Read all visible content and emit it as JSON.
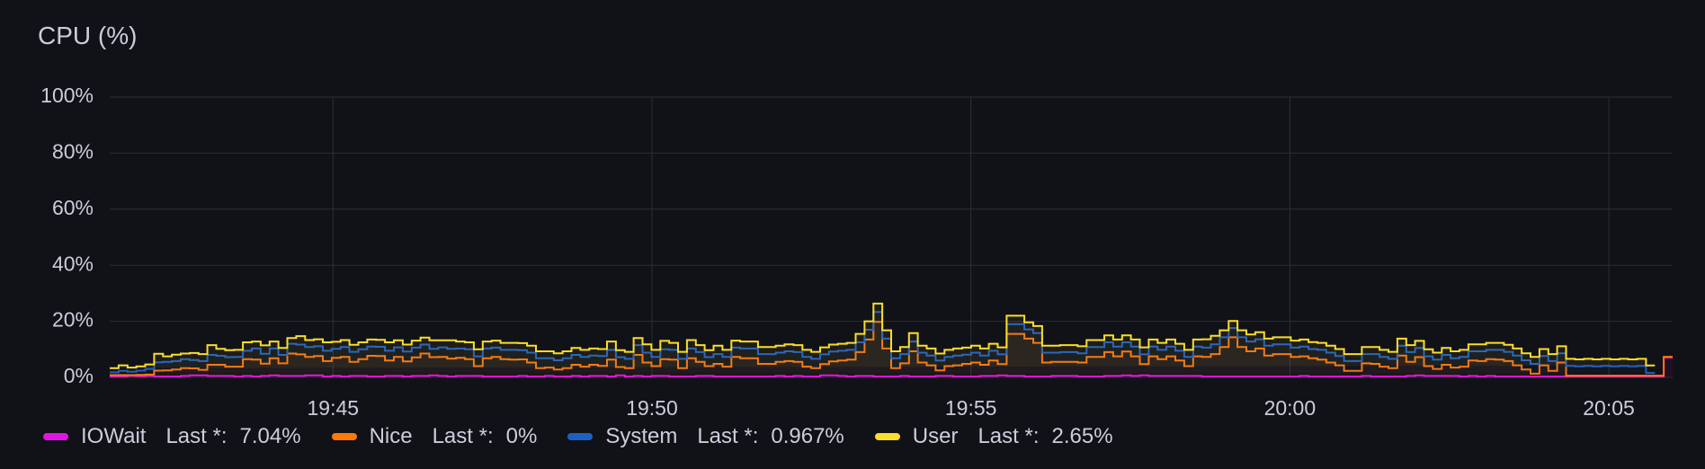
{
  "panel": {
    "title": "CPU (%)"
  },
  "legend": [
    {
      "name": "IOWait",
      "last_label": "Last *:",
      "last_value": "7.04%",
      "color": "#e314e3"
    },
    {
      "name": "Nice",
      "last_label": "Last *:",
      "last_value": "0%",
      "color": "#ff780a"
    },
    {
      "name": "System",
      "last_label": "Last *:",
      "last_value": "0.967%",
      "color": "#1f60c4"
    },
    {
      "name": "User",
      "last_label": "Last *:",
      "last_value": "2.65%",
      "color": "#fade2a"
    }
  ],
  "chart_data": {
    "type": "line",
    "title": "CPU (%)",
    "stacked": true,
    "step": true,
    "xlabel": "",
    "ylabel": "",
    "x_start": "19:41:30",
    "x_end": "20:06:00",
    "x_ticks": [
      "19:45",
      "19:50",
      "19:55",
      "20:00",
      "20:05"
    ],
    "y_ticks": [
      "0%",
      "20%",
      "40%",
      "60%",
      "80%",
      "100%"
    ],
    "ylim": [
      0,
      100
    ],
    "grid": true,
    "legend_position": "bottom-left",
    "series": [
      {
        "name": "IOWait",
        "color": "#e314e3",
        "values": [
          0.3,
          0.3,
          0.5,
          0.4,
          0.5,
          0.3,
          0.3,
          0.3,
          0.5,
          0.7,
          0.7,
          0.5,
          0.5,
          0.5,
          0.3,
          0.5,
          0.3,
          0.5,
          0.7,
          0.5,
          0.5,
          0.5,
          0.7,
          0.7,
          0.3,
          0.5,
          0.3,
          0.5,
          0.5,
          0.3,
          0.3,
          0.5,
          0.5,
          0.3,
          0.5,
          0.5,
          0.7,
          0.5,
          0.3,
          0.5,
          0.5,
          0.5,
          0.3,
          0.3,
          0.3,
          0.3,
          0.5,
          0.3,
          0.3,
          0.5,
          0.3,
          0.3,
          0.5,
          0.3,
          0.5,
          0.5,
          0.3,
          0.7,
          0.3,
          0.5,
          0.3,
          0.5,
          0.5,
          0.3,
          0.3,
          0.3,
          0.5,
          0.5,
          0.3,
          0.3,
          0.3,
          0.3,
          0.3,
          0.3,
          0.3,
          0.5,
          0.3,
          0.5,
          0.3,
          0.3,
          0.7,
          0.7,
          0.5,
          0.3,
          0.5,
          0.5,
          0.3,
          0.3,
          0.3,
          0.5,
          0.3,
          0.3,
          0.3,
          0.5,
          0.5,
          0.3,
          0.3,
          0.3,
          0.5,
          0.5,
          0.7,
          0.5,
          0.5,
          0.3,
          0.3,
          0.3,
          0.5,
          0.5,
          0.5,
          0.3,
          0.3,
          0.3,
          0.5,
          0.5,
          0.7,
          0.5,
          0.7,
          0.5,
          0.5,
          0.5,
          0.5,
          0.5,
          0.5,
          0.3,
          0.3,
          0.3,
          0.3,
          0.3,
          0.3,
          0.3,
          0.3,
          0.3,
          0.3,
          0.3,
          0.5,
          0.3,
          0.3,
          0.3,
          0.3,
          0.3,
          0.3,
          0.5,
          0.3,
          0.3,
          0.3,
          0.3,
          0.5,
          0.7,
          0.5,
          0.5,
          0.5,
          0.5,
          0.3,
          0.5,
          0.3,
          0.5,
          0.3,
          0.3,
          0.3,
          0.3,
          0.3,
          0.3,
          0.3,
          0.3,
          0.3,
          0.3,
          0.3,
          0.3,
          0.3,
          0.3,
          0.3,
          0.3,
          0.3,
          0.3,
          0.3,
          7.04
        ]
      },
      {
        "name": "Nice",
        "color": "#ff780a",
        "values": [
          0.5,
          0.5,
          0.3,
          0.5,
          0.5,
          2.1,
          2.2,
          2.5,
          2.8,
          2.5,
          2.0,
          4.0,
          4.0,
          3.3,
          3.5,
          6.0,
          6.0,
          4.4,
          6.1,
          4.5,
          8.0,
          7.7,
          6.6,
          6.9,
          5.5,
          6.5,
          7.0,
          5.0,
          6.0,
          7.4,
          7.3,
          5.5,
          6.8,
          5.4,
          6.6,
          8.0,
          6.5,
          6.8,
          6.4,
          6.5,
          6.0,
          3.5,
          6.5,
          7.0,
          6.2,
          6.0,
          5.9,
          5.0,
          3.0,
          3.0,
          2.5,
          3.0,
          4.0,
          3.5,
          4.0,
          3.6,
          6.0,
          3.0,
          3.0,
          7.5,
          5.0,
          3.5,
          6.0,
          6.0,
          3.0,
          6.5,
          5.0,
          3.5,
          4.5,
          3.5,
          7.0,
          6.5,
          6.5,
          4.5,
          4.5,
          5.0,
          5.5,
          5.0,
          3.5,
          3.0,
          4.0,
          5.0,
          5.5,
          6.0,
          8.5,
          13.0,
          19.5,
          10.0,
          3.0,
          4.5,
          9.0,
          5.0,
          4.0,
          2.0,
          3.5,
          4.0,
          4.5,
          5.0,
          4.0,
          5.5,
          4.0,
          15.0,
          15.0,
          13.5,
          12.0,
          5.0,
          5.0,
          5.0,
          5.0,
          5.0,
          7.0,
          7.0,
          8.5,
          7.0,
          8.5,
          7.0,
          4.0,
          7.0,
          6.0,
          7.0,
          5.5,
          3.5,
          7.0,
          7.0,
          8.0,
          10.5,
          14.0,
          10.5,
          9.0,
          10.0,
          7.5,
          8.0,
          8.0,
          7.0,
          7.0,
          6.5,
          6.0,
          5.0,
          4.0,
          2.0,
          2.0,
          4.5,
          4.5,
          3.5,
          3.0,
          7.5,
          5.0,
          6.5,
          3.5,
          2.5,
          4.0,
          3.0,
          3.5,
          5.5,
          5.5,
          6.0,
          6.0,
          5.5,
          4.0,
          2.5,
          1.0,
          4.0,
          2.0,
          5.0,
          0.3,
          0.3,
          0.3,
          0.3,
          0.3,
          0.3,
          0.3,
          0.3,
          0.3,
          0.3,
          0.3,
          0.3,
          0.3,
          0.3,
          0.3,
          0
        ]
      },
      {
        "name": "System",
        "color": "#1f60c4",
        "values": [
          1.0,
          1.5,
          1.2,
          1.5,
          2.0,
          3.0,
          3.0,
          3.0,
          3.2,
          3.0,
          3.1,
          3.5,
          3.2,
          3.4,
          3.5,
          3.0,
          4.0,
          3.5,
          3.5,
          3.0,
          3.5,
          3.5,
          3.5,
          3.5,
          3.7,
          3.2,
          3.5,
          3.6,
          3.5,
          3.3,
          3.3,
          3.5,
          3.4,
          3.5,
          3.5,
          3.2,
          3.0,
          3.4,
          3.5,
          3.3,
          3.5,
          3.5,
          3.5,
          3.3,
          3.3,
          3.5,
          3.3,
          3.5,
          3.5,
          3.3,
          3.3,
          3.5,
          3.5,
          3.5,
          3.3,
          3.5,
          3.5,
          3.5,
          3.3,
          3.5,
          3.5,
          3.3,
          3.5,
          3.5,
          3.3,
          3.5,
          3.5,
          3.2,
          3.5,
          3.5,
          3.3,
          3.5,
          3.5,
          3.5,
          3.5,
          3.3,
          3.5,
          3.5,
          3.5,
          3.3,
          3.5,
          3.5,
          3.5,
          3.5,
          3.5,
          3.5,
          3.5,
          3.5,
          3.5,
          3.3,
          3.5,
          3.5,
          3.5,
          3.5,
          3.3,
          3.5,
          3.3,
          3.5,
          3.3,
          3.5,
          3.5,
          3.5,
          3.5,
          3.3,
          3.5,
          3.5,
          3.3,
          3.5,
          3.5,
          3.3,
          3.5,
          3.5,
          3.5,
          3.5,
          3.3,
          3.5,
          3.5,
          3.5,
          3.3,
          3.5,
          3.5,
          3.3,
          3.5,
          3.3,
          3.5,
          3.5,
          3.3,
          3.5,
          3.5,
          3.3,
          3.5,
          3.5,
          3.5,
          3.3,
          3.5,
          3.3,
          3.5,
          3.5,
          3.3,
          3.5,
          3.5,
          3.3,
          3.5,
          3.5,
          3.3,
          3.5,
          3.5,
          3.3,
          3.5,
          3.3,
          3.5,
          3.3,
          3.5,
          3.3,
          3.5,
          3.3,
          3.5,
          3.3,
          3.5,
          3.3,
          3.5,
          3.3,
          3.5,
          3.3,
          3.5,
          3.3,
          3.5,
          3.3,
          3.5,
          3.3,
          3.5,
          3.3,
          3.5,
          0.967
        ]
      },
      {
        "name": "User",
        "color": "#fade2a",
        "values": [
          1.5,
          2.0,
          1.5,
          1.5,
          1.6,
          3.0,
          2.0,
          2.3,
          2.0,
          2.5,
          2.5,
          3.5,
          2.5,
          2.5,
          2.5,
          3.0,
          2.5,
          3.0,
          2.5,
          2.5,
          2.0,
          3.0,
          2.5,
          2.5,
          3.0,
          2.5,
          2.5,
          2.5,
          2.5,
          2.5,
          2.5,
          3.0,
          2.5,
          2.5,
          2.5,
          2.5,
          3.0,
          2.5,
          3.0,
          2.5,
          2.5,
          2.5,
          2.5,
          2.5,
          2.5,
          2.5,
          2.5,
          2.5,
          2.5,
          2.5,
          2.5,
          2.5,
          2.5,
          2.5,
          2.5,
          2.5,
          3.0,
          2.5,
          2.5,
          2.5,
          3.0,
          2.5,
          3.0,
          2.5,
          2.5,
          3.0,
          2.5,
          2.5,
          3.0,
          2.5,
          2.5,
          2.5,
          2.5,
          2.5,
          2.5,
          2.5,
          2.5,
          2.5,
          2.5,
          2.5,
          2.5,
          2.5,
          2.5,
          2.5,
          3.0,
          3.0,
          3.0,
          3.0,
          2.5,
          2.5,
          3.0,
          2.5,
          2.5,
          2.5,
          2.5,
          2.5,
          2.5,
          2.5,
          2.5,
          2.5,
          2.5,
          3.0,
          3.0,
          2.5,
          2.5,
          2.5,
          2.5,
          2.5,
          2.5,
          2.5,
          2.5,
          2.5,
          2.5,
          2.5,
          2.5,
          2.5,
          2.5,
          2.5,
          2.5,
          2.5,
          2.5,
          2.5,
          2.5,
          3.0,
          3.0,
          2.5,
          2.5,
          2.5,
          2.5,
          2.5,
          2.5,
          2.5,
          2.5,
          2.5,
          2.5,
          2.5,
          2.5,
          2.5,
          2.5,
          2.5,
          2.5,
          2.5,
          2.5,
          2.5,
          2.5,
          2.5,
          2.5,
          2.5,
          2.5,
          2.5,
          2.5,
          2.5,
          2.5,
          2.5,
          2.5,
          2.5,
          2.5,
          2.5,
          2.5,
          2.5,
          2.5,
          2.5,
          2.5,
          2.5,
          2.5,
          2.5,
          2.5,
          2.5,
          2.5,
          2.5,
          2.5,
          2.5,
          2.5,
          2.65
        ]
      }
    ]
  }
}
